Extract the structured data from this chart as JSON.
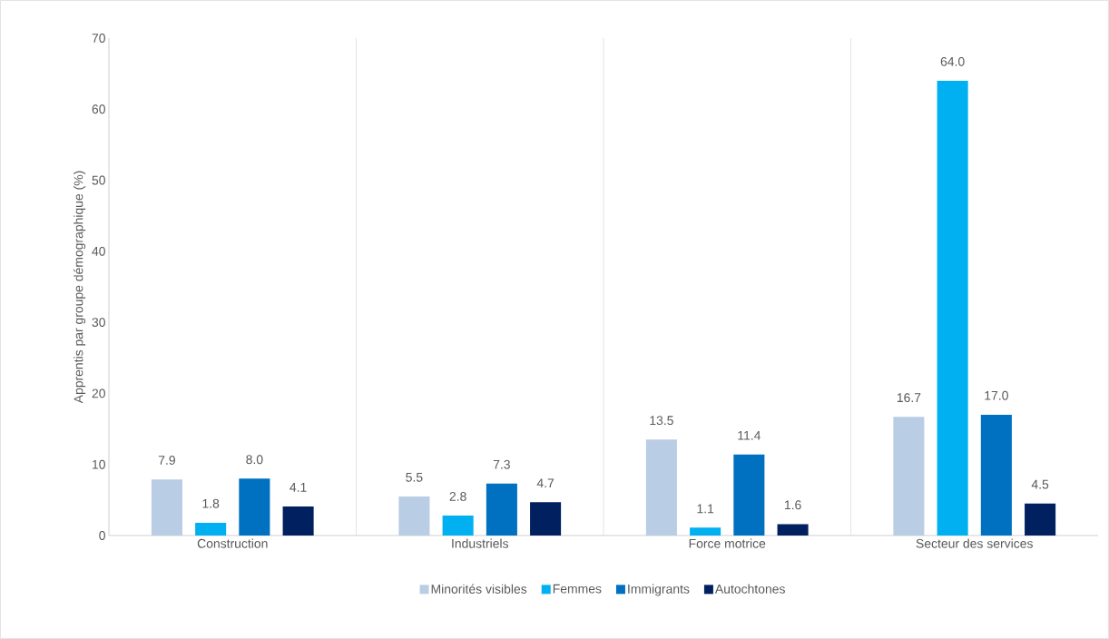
{
  "chart_data": {
    "type": "bar",
    "ylabel": "Apprentis par groupe démographique (%)",
    "categories": [
      "Construction",
      "Industriels",
      "Force motrice",
      "Secteur des services"
    ],
    "series": [
      {
        "name": "Minorités visibles",
        "color": "#b9cde5",
        "values": [
          7.9,
          5.5,
          13.5,
          16.7
        ],
        "value_labels": [
          "7.9",
          "5.5",
          "13.5",
          "16.7"
        ]
      },
      {
        "name": "Femmes",
        "color": "#00b0f0",
        "values": [
          1.8,
          2.8,
          1.1,
          64.0
        ],
        "value_labels": [
          "1.8",
          "2.8",
          "1.1",
          "64.0"
        ]
      },
      {
        "name": "Immigrants",
        "color": "#0070c0",
        "values": [
          8.0,
          7.3,
          11.4,
          17.0
        ],
        "value_labels": [
          "8.0",
          "7.3",
          "11.4",
          "17.0"
        ]
      },
      {
        "name": "Autochtones",
        "color": "#002060",
        "values": [
          4.1,
          4.7,
          1.6,
          4.5
        ],
        "value_labels": [
          "4.1",
          "4.7",
          "1.6",
          "4.5"
        ]
      }
    ],
    "ylim": [
      0,
      70
    ],
    "yticks": [
      0,
      10,
      20,
      30,
      40,
      50,
      60,
      70
    ],
    "grid": "x",
    "legend": "bottom"
  }
}
